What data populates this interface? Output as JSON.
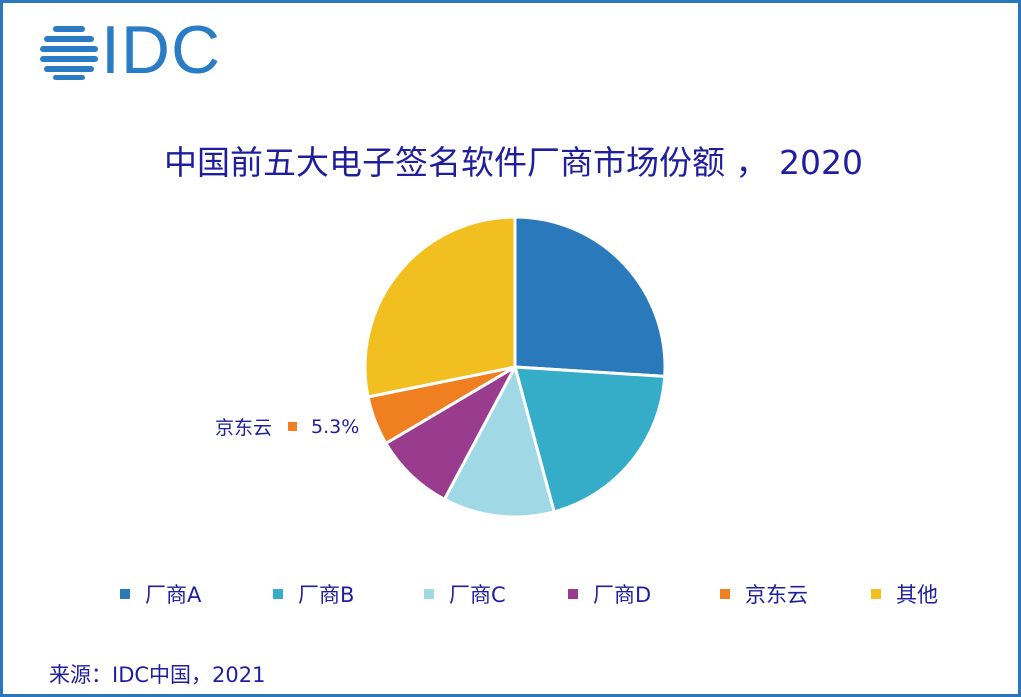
{
  "logo": {
    "text": "IDC"
  },
  "title": "中国前五大电子签名软件厂商市场份额 ， 2020",
  "callout": {
    "label": "京东云",
    "value": "5.3%",
    "color": "#f07f22"
  },
  "legend": [
    {
      "label": "厂商A",
      "color": "#2a79ba"
    },
    {
      "label": "厂商B",
      "color": "#36adc8"
    },
    {
      "label": "厂商C",
      "color": "#a0d8e6"
    },
    {
      "label": "厂商D",
      "color": "#9a3c8e"
    },
    {
      "label": "京东云",
      "color": "#f07f22"
    },
    {
      "label": "其他",
      "color": "#f2bf21"
    }
  ],
  "source": "来源：IDC中国，2021",
  "chart_data": {
    "type": "pie",
    "title": "中国前五大电子签名软件厂商市场份额 ， 2020",
    "categories": [
      "厂商A",
      "厂商B",
      "厂商C",
      "厂商D",
      "京东云",
      "其他"
    ],
    "values": [
      26.0,
      19.8,
      12.0,
      8.7,
      5.3,
      28.2
    ],
    "colors": [
      "#2a79ba",
      "#36adc8",
      "#a0d8e6",
      "#9a3c8e",
      "#f07f22",
      "#f2bf21"
    ],
    "data_labels": [
      {
        "category": "京东云",
        "text": "5.3%"
      }
    ],
    "legend_position": "bottom",
    "start_angle": "12 o'clock, clockwise",
    "source": "来源：IDC中国，2021"
  }
}
